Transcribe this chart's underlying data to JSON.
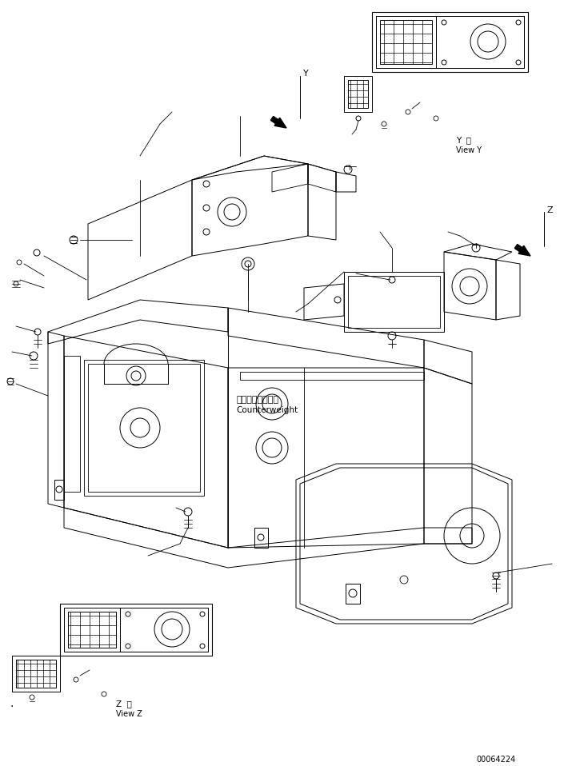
{
  "bg_color": "#ffffff",
  "line_color": "#000000",
  "part_number": "00064224",
  "view_y_label_1": "Y  視",
  "view_y_label_2": "View Y",
  "view_z_label_1": "Z  視",
  "view_z_label_2": "View Z",
  "cw_jp": "カウンタウェイト",
  "cw_en": "Counterweight",
  "figsize": [
    7.2,
    9.58
  ],
  "dpi": 100
}
